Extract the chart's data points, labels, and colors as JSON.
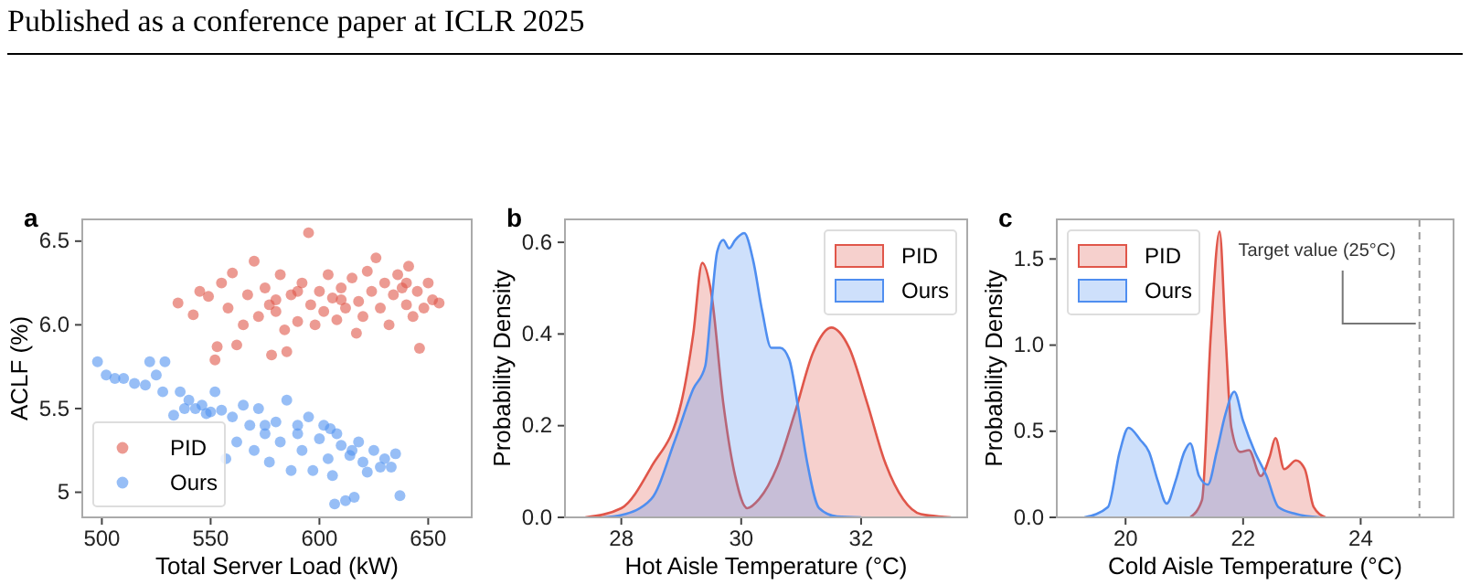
{
  "chart_data": [
    {
      "type": "scatter",
      "title": "a",
      "xlabel": "Total Server Load (kW)",
      "ylabel": "ACLF (%)",
      "xlim": [
        491,
        670
      ],
      "ylim": [
        4.85,
        6.63
      ],
      "xticks": [
        500,
        550,
        600,
        650
      ],
      "yticks": [
        5.0,
        {
          "value": 5.5,
          "label": "5.5"
        },
        {
          "value": 6.0,
          "label": "6.0"
        },
        6.5
      ],
      "legend": "bottom left",
      "marker": "circle",
      "annotations": [
        "Published as a conference paper at ICLR 2025"
      ],
      "series": [
        {
          "name": "PID",
          "color": "#e0564a",
          "x": [
            535,
            542,
            545,
            549,
            552,
            553,
            555,
            558,
            560,
            562,
            565,
            567,
            570,
            572,
            575,
            577,
            578,
            580,
            582,
            584,
            585,
            587,
            590,
            592,
            595,
            596,
            598,
            600,
            602,
            604,
            606,
            608,
            610,
            612,
            615,
            617,
            618,
            620,
            622,
            624,
            626,
            628,
            630,
            632,
            634,
            636,
            638,
            640,
            641,
            643,
            645,
            646,
            648,
            650,
            652,
            655,
            590,
            610,
            640,
            580
          ],
          "values": [
            6.13,
            6.06,
            6.2,
            6.17,
            5.79,
            5.87,
            6.25,
            6.1,
            6.31,
            5.88,
            6.0,
            6.18,
            6.38,
            6.05,
            6.22,
            6.12,
            5.82,
            6.08,
            6.3,
            5.97,
            5.84,
            6.18,
            6.02,
            6.25,
            6.55,
            6.12,
            6.0,
            6.2,
            6.08,
            6.3,
            6.16,
            6.03,
            6.22,
            6.1,
            6.28,
            5.95,
            6.14,
            6.05,
            6.32,
            6.2,
            6.4,
            6.1,
            6.25,
            6.0,
            6.18,
            6.3,
            6.22,
            6.12,
            6.35,
            6.05,
            6.2,
            5.86,
            6.1,
            6.25,
            6.15,
            6.13,
            6.2,
            6.15,
            6.25,
            6.15
          ]
        },
        {
          "name": "Ours",
          "color": "#5192f0",
          "x": [
            498,
            502,
            506,
            510,
            515,
            520,
            522,
            525,
            528,
            529,
            533,
            536,
            538,
            540,
            543,
            546,
            548,
            550,
            552,
            555,
            557,
            560,
            562,
            565,
            568,
            570,
            572,
            575,
            577,
            580,
            582,
            585,
            587,
            590,
            592,
            595,
            597,
            600,
            602,
            604,
            606,
            607,
            608,
            610,
            612,
            614,
            616,
            618,
            620,
            622,
            625,
            628,
            630,
            633,
            635,
            637,
            590,
            605,
            575,
            615
          ],
          "values": [
            5.78,
            5.7,
            5.68,
            5.68,
            5.65,
            5.64,
            5.78,
            5.7,
            5.6,
            5.78,
            5.46,
            5.6,
            5.5,
            5.55,
            5.5,
            5.52,
            5.47,
            5.48,
            5.6,
            5.49,
            5.2,
            5.45,
            5.3,
            5.52,
            5.4,
            5.25,
            5.5,
            5.35,
            5.18,
            5.42,
            5.3,
            5.55,
            5.13,
            5.35,
            5.25,
            5.45,
            5.13,
            5.32,
            5.4,
            5.2,
            5.1,
            4.93,
            5.35,
            5.28,
            4.95,
            5.22,
            4.97,
            5.3,
            5.18,
            5.12,
            5.25,
            5.15,
            5.2,
            5.15,
            5.23,
            4.98,
            5.4,
            5.38,
            5.4,
            5.25
          ]
        }
      ]
    },
    {
      "type": "area",
      "title": "b",
      "xlabel": "Hot Aisle Temperature (°C)",
      "ylabel": "Probability Density",
      "xlim": [
        27.06,
        33.77
      ],
      "ylim": [
        0,
        0.65
      ],
      "xticks": [
        28,
        30,
        32
      ],
      "yticks": [
        {
          "value": 0,
          "label": "0.0"
        },
        0.2,
        0.4,
        0.6
      ],
      "legend": "top right",
      "series": [
        {
          "name": "PID",
          "color": "#e0564a",
          "x": [
            27.4,
            28,
            28.5,
            29,
            29.2,
            29.35,
            29.5,
            29.7,
            29.9,
            30.1,
            30.3,
            30.6,
            30.9,
            31.2,
            31.5,
            31.8,
            32.1,
            32.4,
            32.7,
            33,
            33.5
          ],
          "values": [
            0,
            0.02,
            0.11,
            0.25,
            0.4,
            0.555,
            0.49,
            0.25,
            0.09,
            0.02,
            0.04,
            0.11,
            0.23,
            0.36,
            0.414,
            0.37,
            0.25,
            0.12,
            0.04,
            0.007,
            0
          ]
        },
        {
          "name": "Ours",
          "color": "#4f8ef0",
          "x": [
            27.7,
            28,
            28.5,
            28.9,
            29.2,
            29.4,
            29.5,
            29.6,
            29.7,
            29.8,
            29.9,
            30.05,
            30.2,
            30.35,
            30.5,
            30.65,
            30.8,
            30.95,
            31.1,
            31.3,
            31.6,
            32
          ],
          "values": [
            0,
            0.005,
            0.04,
            0.17,
            0.28,
            0.33,
            0.46,
            0.58,
            0.605,
            0.587,
            0.605,
            0.62,
            0.56,
            0.45,
            0.37,
            0.37,
            0.345,
            0.24,
            0.12,
            0.02,
            0.002,
            0
          ]
        }
      ]
    },
    {
      "type": "area",
      "title": "c",
      "xlabel": "Cold Aisle Temperature (°C)",
      "ylabel": "Probability Density",
      "xlim": [
        18.83,
        25.58
      ],
      "ylim": [
        0,
        1.73
      ],
      "xticks": [
        20,
        22,
        24
      ],
      "yticks": [
        {
          "value": 0,
          "label": "0.0"
        },
        {
          "value": 0.5,
          "label": "0.5"
        },
        {
          "value": 1,
          "label": "1.0"
        },
        1.5
      ],
      "legend": "top left",
      "ref_lines": [
        {
          "axis": "x",
          "value": 25,
          "label": "Target value (25°C)",
          "color": "#999999",
          "line_style": "dashed"
        }
      ],
      "series": [
        {
          "name": "PID",
          "color": "#e0564a",
          "x": [
            21.1,
            21.3,
            21.45,
            21.6,
            21.7,
            21.8,
            21.95,
            22.1,
            22.3,
            22.45,
            22.55,
            22.7,
            22.9,
            23.05,
            23.2,
            23.4
          ],
          "values": [
            0,
            0.1,
            1.06,
            1.66,
            1.06,
            0.52,
            0.38,
            0.39,
            0.24,
            0.35,
            0.46,
            0.28,
            0.33,
            0.28,
            0.06,
            0
          ]
        },
        {
          "name": "Ours",
          "color": "#4f8ef0",
          "x": [
            19.3,
            19.7,
            19.9,
            20.05,
            20.25,
            20.4,
            20.55,
            20.7,
            20.85,
            21,
            21.1,
            21.25,
            21.4,
            21.55,
            21.7,
            21.85,
            22,
            22.2,
            22.4,
            22.6,
            22.9,
            23.3
          ],
          "values": [
            0,
            0.06,
            0.38,
            0.52,
            0.45,
            0.38,
            0.21,
            0.08,
            0.21,
            0.38,
            0.43,
            0.24,
            0.19,
            0.38,
            0.6,
            0.73,
            0.56,
            0.38,
            0.24,
            0.06,
            0.02,
            0
          ]
        }
      ]
    }
  ]
}
